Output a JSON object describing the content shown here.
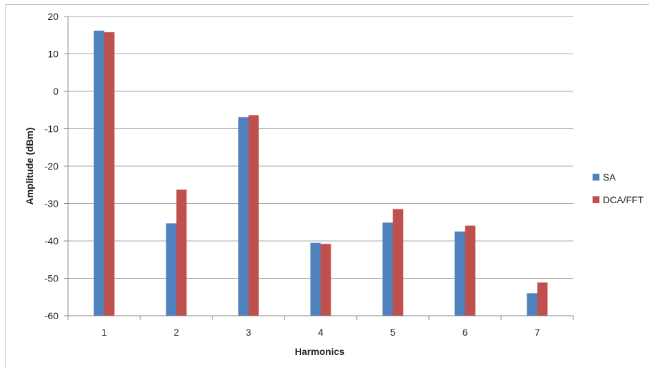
{
  "chart_data": {
    "type": "bar",
    "xlabel": "Harmonics",
    "ylabel": "Amplitude (dBm)",
    "categories": [
      "1",
      "2",
      "3",
      "4",
      "5",
      "6",
      "7"
    ],
    "ylim": [
      -60,
      20
    ],
    "yticks": [
      20,
      10,
      0,
      -10,
      -20,
      -30,
      -40,
      -50,
      -60
    ],
    "ytick_labels": [
      "20",
      "10",
      "0",
      "-10",
      "-20",
      "-30",
      "-40",
      "-50",
      "-60"
    ],
    "grid": true,
    "legend_position": "right",
    "series": [
      {
        "name": "SA",
        "color": "#4F81BD",
        "values": [
          16.2,
          -35.3,
          -6.9,
          -40.5,
          -35.1,
          -37.5,
          -54.0
        ]
      },
      {
        "name": "DCA/FFT",
        "color": "#C0504D",
        "values": [
          15.8,
          -26.3,
          -6.4,
          -40.8,
          -31.5,
          -35.9,
          -51.1
        ]
      }
    ]
  }
}
